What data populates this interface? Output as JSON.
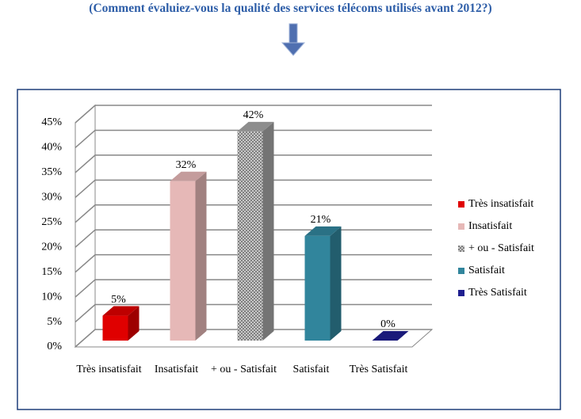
{
  "chart_data": {
    "type": "bar3d",
    "title": "(Comment évaluiez-vous la qualité des services télécoms utilisés avant 2012?)",
    "categories": [
      "Très insatisfait",
      "Insatisfait",
      "+ ou - Satisfait",
      "Satisfait",
      "Très Satisfait"
    ],
    "values": [
      5,
      32,
      42,
      21,
      0
    ],
    "value_labels": [
      "5%",
      "32%",
      "42%",
      "21%",
      "0%"
    ],
    "colors": [
      "#e00000",
      "#e6b8b7",
      "#a6a6a6",
      "#31859c",
      "#1f1f8f"
    ],
    "ylim": [
      0,
      45
    ],
    "yticks": [
      {
        "value": 0,
        "label": "0%"
      },
      {
        "value": 5,
        "label": "5%"
      },
      {
        "value": 10,
        "label": "10%"
      },
      {
        "value": 15,
        "label": "15%"
      },
      {
        "value": 20,
        "label": "20%"
      },
      {
        "value": 25,
        "label": "25%"
      },
      {
        "value": 30,
        "label": "30%"
      },
      {
        "value": 35,
        "label": "35%"
      },
      {
        "value": 40,
        "label": "40%"
      },
      {
        "value": 45,
        "label": "45%"
      }
    ],
    "grid": true,
    "legend": "right"
  }
}
